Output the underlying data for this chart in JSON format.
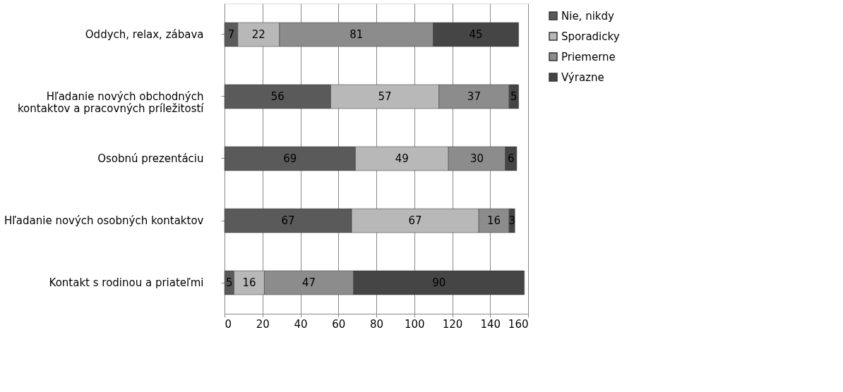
{
  "chart_data": {
    "type": "bar",
    "orientation": "horizontal",
    "stacked": true,
    "categories": [
      "Oddych, relax, zábava",
      "Hľadanie nových obchodných kontaktov a pracovných príležitostí",
      "Osobnú prezentáciu",
      "Hľadanie nových osobných kontaktov",
      "Kontakt s rodinou a priateľmi"
    ],
    "series": [
      {
        "name": "Nie, nikdy",
        "color": "#5a5a5a",
        "values": [
          7,
          56,
          69,
          67,
          5
        ]
      },
      {
        "name": "Sporadicky",
        "color": "#b8b8b8",
        "values": [
          22,
          57,
          49,
          67,
          16
        ]
      },
      {
        "name": "Priemerne",
        "color": "#8c8c8c",
        "values": [
          81,
          37,
          30,
          16,
          47
        ]
      },
      {
        "name": "Výrazne",
        "color": "#454545",
        "values": [
          45,
          5,
          6,
          3,
          90
        ]
      }
    ],
    "xlim": [
      0,
      160
    ],
    "xticks": [
      0,
      20,
      40,
      60,
      80,
      100,
      120,
      140,
      160
    ],
    "grid": "x",
    "legend": "right",
    "data_labels": true
  }
}
